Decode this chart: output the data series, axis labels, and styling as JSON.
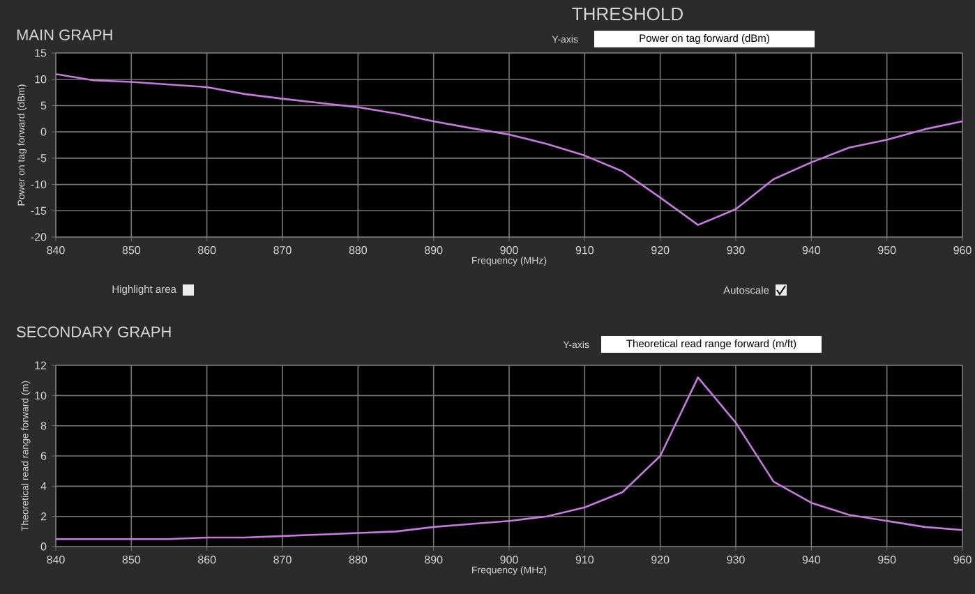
{
  "chart_data": [
    {
      "type": "line",
      "title": "MAIN GRAPH",
      "xlabel": "Frequency (MHz)",
      "ylabel": "Power on tag forward (dBm)",
      "annotations": [
        "THRESHOLD",
        "Y-axis",
        "Power on tag forward (dBm)",
        "Highlight area",
        "Autoscale"
      ],
      "x": [
        840,
        845,
        850,
        855,
        860,
        865,
        870,
        875,
        880,
        885,
        890,
        895,
        900,
        905,
        910,
        915,
        920,
        925,
        930,
        935,
        940,
        945,
        950,
        955,
        960
      ],
      "values": [
        11,
        9.8,
        9.5,
        9,
        8.5,
        7.2,
        6.3,
        5.5,
        4.7,
        3.5,
        2,
        0.7,
        -0.5,
        -2.3,
        -4.5,
        -7.5,
        -12.5,
        -17.7,
        -14.7,
        -9,
        -5.8,
        -3,
        -1.5,
        0.5,
        2
      ],
      "color": "#c77be0",
      "xlim": [
        840,
        960
      ],
      "ylim": [
        -20,
        15
      ],
      "xticks": [
        840,
        850,
        860,
        870,
        880,
        890,
        900,
        910,
        920,
        930,
        940,
        950,
        960
      ],
      "yticks": [
        -20,
        -15,
        -10,
        -5,
        0,
        5,
        10,
        15
      ],
      "grid": true
    },
    {
      "type": "line",
      "title": "SECONDARY GRAPH",
      "xlabel": "Frequency (MHz)",
      "ylabel": "Theoretical read range forward (m)",
      "annotations": [
        "Y-axis",
        "Theoretical read range forward (m/ft)"
      ],
      "x": [
        840,
        845,
        850,
        855,
        860,
        865,
        870,
        875,
        880,
        885,
        890,
        895,
        900,
        905,
        910,
        915,
        920,
        925,
        930,
        935,
        940,
        945,
        950,
        955,
        960
      ],
      "values": [
        0.5,
        0.5,
        0.5,
        0.5,
        0.6,
        0.6,
        0.7,
        0.8,
        0.9,
        1.0,
        1.3,
        1.5,
        1.7,
        2.0,
        2.6,
        3.6,
        6.0,
        11.2,
        8.2,
        4.3,
        2.9,
        2.1,
        1.7,
        1.3,
        1.1
      ],
      "color": "#c77be0",
      "xlim": [
        840,
        960
      ],
      "ylim": [
        0,
        12
      ],
      "xticks": [
        840,
        850,
        860,
        870,
        880,
        890,
        900,
        910,
        920,
        930,
        940,
        950,
        960
      ],
      "yticks": [
        0,
        2,
        4,
        6,
        8,
        10,
        12
      ],
      "grid": true
    }
  ]
}
